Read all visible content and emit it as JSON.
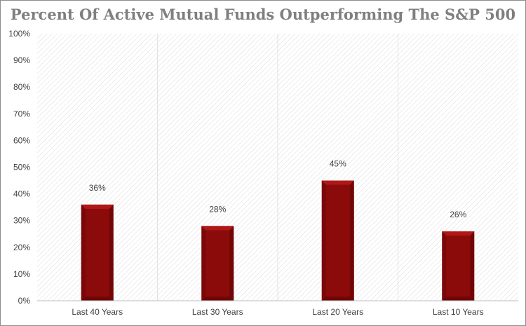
{
  "chart_data": {
    "type": "bar",
    "title": "Percent Of Active Mutual Funds Outperforming The S&P 500",
    "xlabel": "",
    "ylabel": "",
    "categories": [
      "Last 40 Years",
      "Last 30 Years",
      "Last 20 Years",
      "Last 10 Years"
    ],
    "values": [
      36,
      28,
      45,
      26
    ],
    "data_labels": [
      "36%",
      "28%",
      "45%",
      "26%"
    ],
    "ylim": [
      0,
      100
    ],
    "yticks": [
      0,
      10,
      20,
      30,
      40,
      50,
      60,
      70,
      80,
      90,
      100
    ],
    "ytick_labels": [
      "0%",
      "10%",
      "20%",
      "30%",
      "40%",
      "50%",
      "60%",
      "70%",
      "80%",
      "90%",
      "100%"
    ],
    "grid": "vertical category separators",
    "legend": "none",
    "colors": {
      "bar": "#8b0b0b",
      "bar_light": "#b01818",
      "bar_dark": "#5e0404",
      "title": "#7f7f7f"
    }
  }
}
